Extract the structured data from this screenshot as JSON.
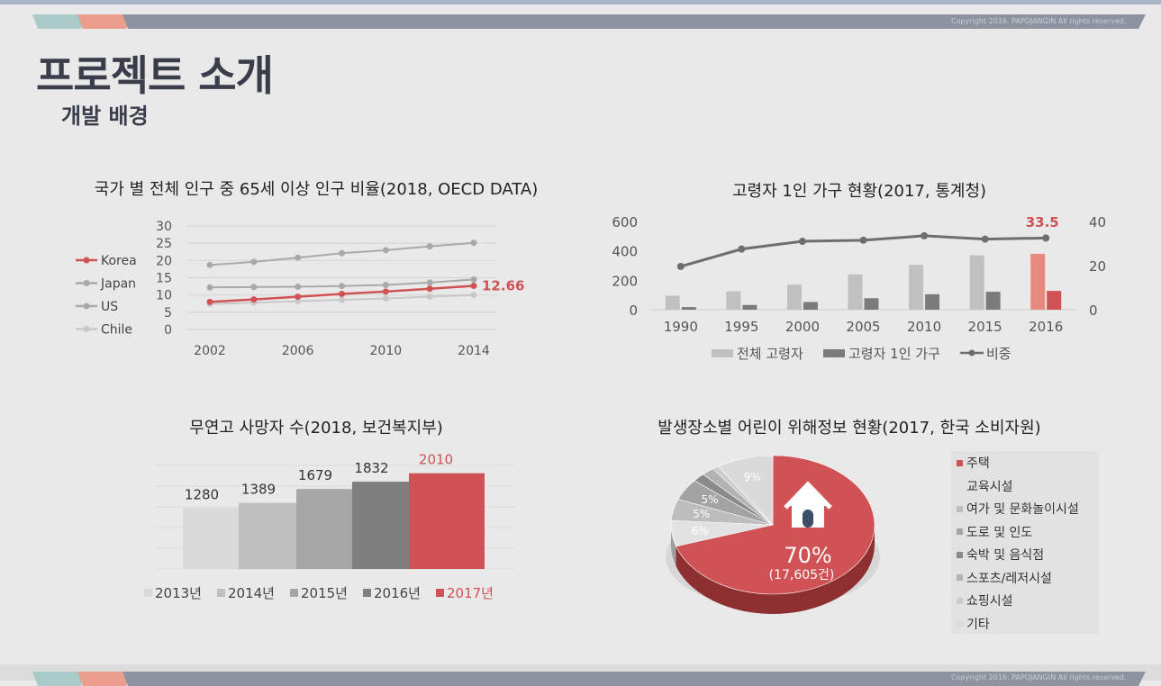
{
  "header": {
    "copyright": "Copyright 2016. PAPOJANGIN All rights reserved.",
    "title": "프로젝트 소개",
    "subtitle": "개발 배경"
  },
  "colors": {
    "accent_teal": "#a8cbc9",
    "accent_coral": "#ec9d8d",
    "band": "#8e93a0",
    "red": "#d05254",
    "title_dark": "#3a3d4a"
  },
  "chart_data": [
    {
      "type": "line",
      "title": "국가 별 전체 인구 중 65세 이상 인구 비율(2018, OECD DATA)",
      "x": [
        2002,
        2004,
        2006,
        2008,
        2010,
        2012,
        2014
      ],
      "x_ticks": [
        "2002",
        "2006",
        "2010",
        "2014"
      ],
      "y_ticks": [
        "30",
        "25",
        "20",
        "15",
        "10",
        "5",
        "0"
      ],
      "ylim": [
        0,
        30
      ],
      "grid": true,
      "legend_position": "left",
      "series": [
        {
          "name": "Korea",
          "color": "#d05254",
          "values": [
            8.0,
            8.7,
            9.5,
            10.3,
            11.0,
            11.8,
            12.66
          ]
        },
        {
          "name": "Japan",
          "color": "#a9a9a9",
          "values": [
            18.7,
            19.6,
            20.8,
            22.1,
            23.0,
            24.1,
            25.1
          ]
        },
        {
          "name": "US",
          "color": "#a9a9a9",
          "values": [
            12.2,
            12.3,
            12.4,
            12.6,
            12.9,
            13.6,
            14.5
          ]
        },
        {
          "name": "Chile",
          "color": "#c8c8c8",
          "values": [
            7.4,
            7.8,
            8.2,
            8.6,
            9.0,
            9.5,
            10.0
          ]
        }
      ],
      "annotation": "12.66"
    },
    {
      "type": "bar",
      "title": "고령자 1인 가구 현황(2017, 통계청)",
      "categories": [
        "1990",
        "1995",
        "2000",
        "2005",
        "2010",
        "2015",
        "2016"
      ],
      "y_ticks_left": [
        "600",
        "400",
        "200",
        "0"
      ],
      "y_ticks_right": [
        "40",
        "20",
        "0"
      ],
      "ylim_left": [
        0,
        600
      ],
      "ylim_right": [
        0,
        40
      ],
      "legend_position": "bottom",
      "series": [
        {
          "name": "전체 고령자",
          "color": "#c0c0c0",
          "highlight_color": "#e8897f",
          "values": [
            95,
            125,
            170,
            240,
            305,
            370,
            380
          ]
        },
        {
          "name": "고령자 1인 가구",
          "color": "#7b7b7b",
          "highlight_color": "#d05254",
          "values": [
            18,
            32,
            52,
            78,
            105,
            122,
            128
          ]
        },
        {
          "name": "비중",
          "color": "#6e6e6e",
          "axis": "right",
          "values": [
            19.6,
            27.5,
            31.0,
            31.5,
            33.5,
            32.0,
            32.5
          ]
        }
      ],
      "annotation": "33.5"
    },
    {
      "type": "bar",
      "title": "무연고 사망자 수(2018, 보건복지부)",
      "categories": [
        "2013년",
        "2014년",
        "2015년",
        "2016년",
        "2017년"
      ],
      "values": [
        1280,
        1389,
        1679,
        1832,
        2010
      ],
      "value_labels": [
        "1280",
        "1389",
        "1679",
        "1832",
        "2010"
      ],
      "colors": [
        "#d9d9d9",
        "#bfbfbf",
        "#a6a6a6",
        "#7f7f7f",
        "#d05254"
      ],
      "ylim": [
        0,
        2000
      ],
      "legend_position": "bottom"
    },
    {
      "type": "pie",
      "title": "발생장소별 어린이 위해정보 현황(2017, 한국 소비자원)",
      "labels": [
        "주택",
        "교육시설",
        "여가 및 문화놀이시설",
        "도로 및 인도",
        "숙박 및 음식점",
        "스포츠/레저시설",
        "쇼핑시설",
        "기타"
      ],
      "values": [
        70,
        6,
        5,
        5,
        2,
        2,
        1,
        9
      ],
      "slice_labels": [
        "70%",
        "6%",
        "5%",
        "5%",
        "",
        "",
        "",
        "9%"
      ],
      "colors": [
        "#d05254",
        "#e2e2e2",
        "#bdbdbd",
        "#a3a3a3",
        "#8a8a8a",
        "#b3b3b3",
        "#cccccc",
        "#dadada"
      ],
      "main_count": "(17,605건)",
      "legend_position": "right"
    }
  ]
}
